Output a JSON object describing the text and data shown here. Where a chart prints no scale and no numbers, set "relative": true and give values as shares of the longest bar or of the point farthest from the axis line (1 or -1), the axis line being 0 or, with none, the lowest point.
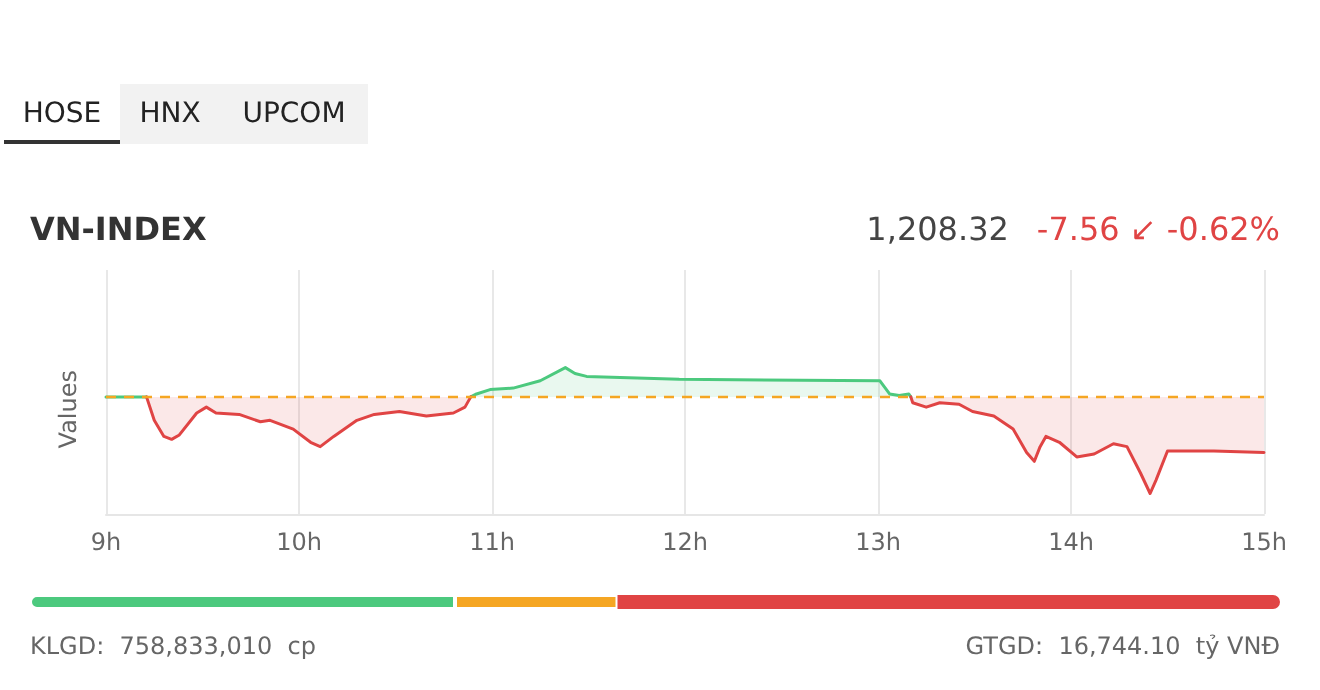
{
  "chart_data": [
    {
      "type": "line",
      "title": "VN-INDEX",
      "ylabel": "Values",
      "relative": true,
      "annotations": [
        "HOSE",
        "HNX",
        "UPCOM",
        "1,208.32",
        "-7.56 ↙ -0.62%"
      ],
      "xlim": [
        9,
        15
      ],
      "xticks": [
        {
          "value": 9,
          "label": "9h"
        },
        {
          "value": 10,
          "label": "10h"
        },
        {
          "value": 11,
          "label": "11h"
        },
        {
          "value": 12,
          "label": "12h"
        },
        {
          "value": 13,
          "label": "13h"
        },
        {
          "value": 14,
          "label": "14h"
        },
        {
          "value": 15,
          "label": "15h"
        }
      ],
      "x": [
        9.0,
        9.21,
        9.25,
        9.3,
        9.34,
        9.38,
        9.47,
        9.52,
        9.57,
        9.69,
        9.8,
        9.85,
        9.97,
        10.06,
        10.11,
        10.18,
        10.3,
        10.39,
        10.52,
        10.66,
        10.8,
        10.86,
        10.89,
        10.92,
        10.99,
        11.11,
        11.25,
        11.38,
        11.43,
        11.49,
        11.97,
        13.01,
        13.06,
        13.11,
        13.16,
        13.17,
        13.18,
        13.25,
        13.32,
        13.42,
        13.49,
        13.6,
        13.7,
        13.77,
        13.81,
        13.84,
        13.87,
        13.94,
        14.03,
        14.12,
        14.22,
        14.29,
        14.36,
        14.41,
        14.44,
        14.5,
        14.74,
        15.0
      ],
      "series": [
        {
          "color": "#4cc97e",
          "values": [
            0.8,
            0.8,
            null,
            null,
            null,
            null,
            null,
            null,
            null,
            null,
            null,
            null,
            null,
            null,
            null,
            null,
            null,
            null,
            null,
            null,
            null,
            null,
            0.8,
            0.82,
            0.85,
            0.86,
            0.91,
            1.0,
            0.96,
            0.94,
            0.92,
            0.91,
            0.82,
            0.81,
            0.82,
            0.8,
            null,
            null,
            null,
            null,
            null,
            null,
            null,
            null,
            null,
            null,
            null,
            null,
            null,
            null,
            null,
            null,
            null,
            null,
            null,
            null,
            null,
            null
          ]
        },
        {
          "color": "#e04444",
          "values": [
            null,
            0.8,
            0.64,
            0.53,
            0.51,
            0.54,
            0.69,
            0.73,
            0.69,
            0.68,
            0.63,
            0.64,
            0.58,
            0.49,
            0.46,
            0.53,
            0.64,
            0.68,
            0.7,
            0.67,
            0.69,
            0.73,
            0.8,
            null,
            null,
            null,
            null,
            null,
            null,
            null,
            null,
            null,
            null,
            null,
            null,
            0.8,
            0.76,
            0.73,
            0.76,
            0.75,
            0.7,
            0.67,
            0.58,
            0.42,
            0.36,
            0.46,
            0.53,
            0.49,
            0.39,
            0.41,
            0.48,
            0.46,
            0.28,
            0.14,
            0.23,
            0.43,
            0.43,
            0.42
          ]
        }
      ],
      "ref_lines": [
        {
          "axis": "y",
          "value": 0.8,
          "color": "#f5a623",
          "line_style": "dashed"
        }
      ],
      "grid": "x",
      "marker": "none",
      "line_style": "solid"
    },
    {
      "type": "bar",
      "orientation": "horizontal",
      "stacked": true,
      "relative": true,
      "categories": [
        null
      ],
      "tick_labels": false,
      "grid": false,
      "series": [
        {
          "color": "#4cc97e",
          "values": [
            0.34
          ]
        },
        {
          "color": "#f5a623",
          "values": [
            0.13
          ]
        },
        {
          "color": "#e04444",
          "values": [
            0.53
          ]
        }
      ],
      "annotations": [
        "KLGD:  758,833,010  cp",
        "GTGD:  16,744.10  tỷ VNĐ"
      ]
    }
  ]
}
